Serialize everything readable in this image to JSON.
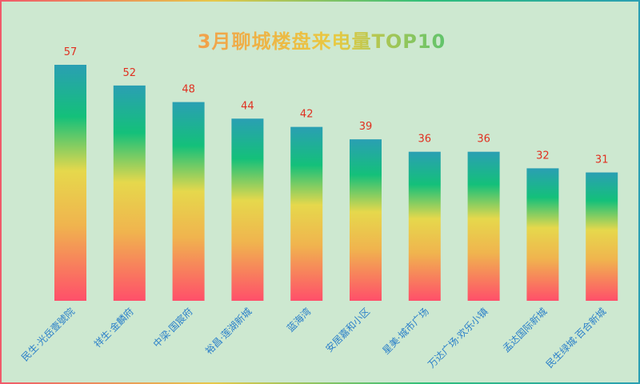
{
  "chart_data": {
    "type": "bar",
    "title": "3月聊城楼盘来电量TOP10",
    "categories": [
      "民生·光岳壹號院",
      "祥生·金麟府",
      "中梁·国宸府",
      "裕昌·莲湖新城",
      "蓝海湾",
      "安居嘉和小区",
      "星美·城市广场",
      "万达广场·欢乐小镇",
      "孟达国际新城",
      "民生绿城·百合新城"
    ],
    "values": [
      57,
      52,
      48,
      44,
      42,
      39,
      36,
      36,
      32,
      31
    ],
    "xlabel": "",
    "ylabel": "",
    "ylim": [
      0,
      60
    ],
    "grid": false,
    "colors": {
      "bar_top": "#2a9fb3",
      "bar_green": "#14c07a",
      "bar_yellow": "#e8d84a",
      "bar_orange": "#f59a55",
      "bar_bottom": "#ff4f6a",
      "value_label": "#e03020",
      "category_label": "#2a7fc9",
      "background": "#cde8d0"
    }
  }
}
